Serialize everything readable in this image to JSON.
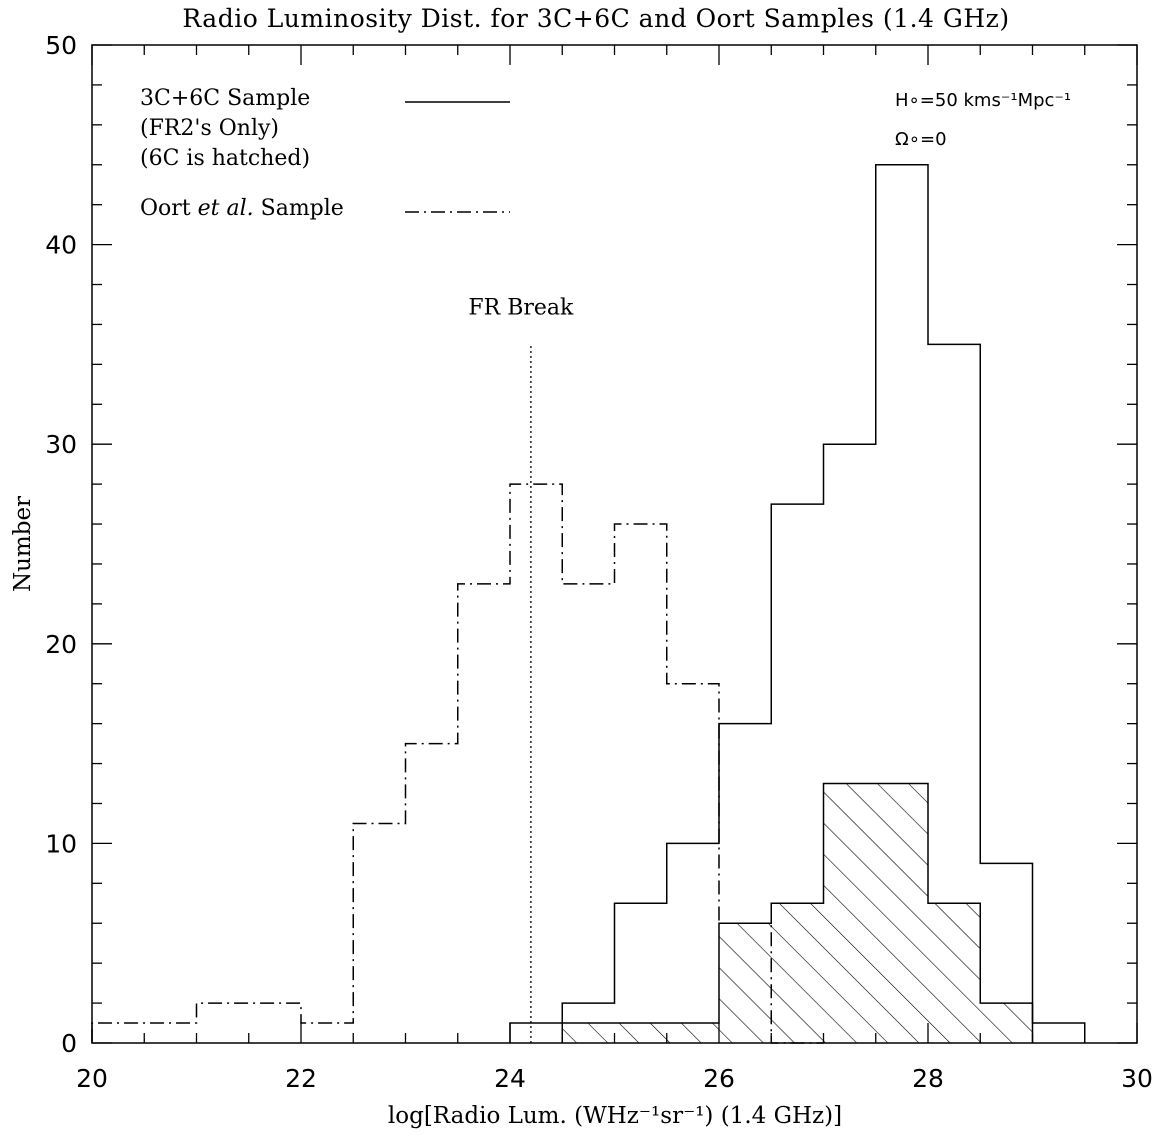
{
  "chart_data": {
    "type": "bar",
    "title": "Radio Luminosity Dist. for 3C+6C and Oort Samples (1.4 GHz)",
    "xlabel": "log[Radio Lum. (WHz⁻¹sr⁻¹) (1.4 GHz)]",
    "ylabel": "Number",
    "xlim": [
      20,
      30
    ],
    "ylim": [
      0,
      50
    ],
    "x_ticks": [
      20,
      22,
      24,
      26,
      28,
      30
    ],
    "y_ticks": [
      0,
      10,
      20,
      30,
      40,
      50
    ],
    "bin_width": 0.5,
    "series": [
      {
        "name": "3C+6C Sample",
        "style": "solid",
        "bins": [
          [
            24.0,
            1
          ],
          [
            24.5,
            2
          ],
          [
            25.0,
            7
          ],
          [
            25.5,
            10
          ],
          [
            26.0,
            16
          ],
          [
            26.5,
            27
          ],
          [
            27.0,
            30
          ],
          [
            27.5,
            44
          ],
          [
            28.0,
            35
          ],
          [
            28.5,
            9
          ],
          [
            29.0,
            1
          ]
        ]
      },
      {
        "name": "6C",
        "style": "hatched",
        "bins": [
          [
            24.5,
            1
          ],
          [
            25.0,
            1
          ],
          [
            25.5,
            1
          ],
          [
            26.0,
            6
          ],
          [
            26.5,
            7
          ],
          [
            27.0,
            13
          ],
          [
            27.5,
            13
          ],
          [
            28.0,
            7
          ],
          [
            28.5,
            2
          ]
        ]
      },
      {
        "name": "Oort et al. Sample",
        "style": "dash-dot",
        "bins": [
          [
            20.0,
            1
          ],
          [
            20.5,
            1
          ],
          [
            21.0,
            2
          ],
          [
            21.5,
            2
          ],
          [
            22.0,
            1
          ],
          [
            22.5,
            11
          ],
          [
            23.0,
            15
          ],
          [
            23.5,
            23
          ],
          [
            24.0,
            28
          ],
          [
            24.5,
            23
          ],
          [
            25.0,
            26
          ],
          [
            25.5,
            18
          ],
          [
            26.0,
            6
          ],
          [
            26.5,
            0
          ]
        ]
      }
    ],
    "fr_break": {
      "label": "FR Break",
      "x": 24.2,
      "y_top": 35
    },
    "legend": {
      "placement": "top-left",
      "entries": [
        {
          "lines": [
            "3C+6C Sample",
            "(FR2's Only)",
            "(6C is hatched)"
          ],
          "style": "solid"
        },
        {
          "text_prefix": "Oort ",
          "text_italic": "et al.",
          "text_suffix": " Sample",
          "style": "dash-dot"
        }
      ]
    },
    "annotations": {
      "cosmo_h0": "H∘=50 kms⁻¹Mpc⁻¹",
      "cosmo_omega": "Ω∘=0"
    }
  }
}
